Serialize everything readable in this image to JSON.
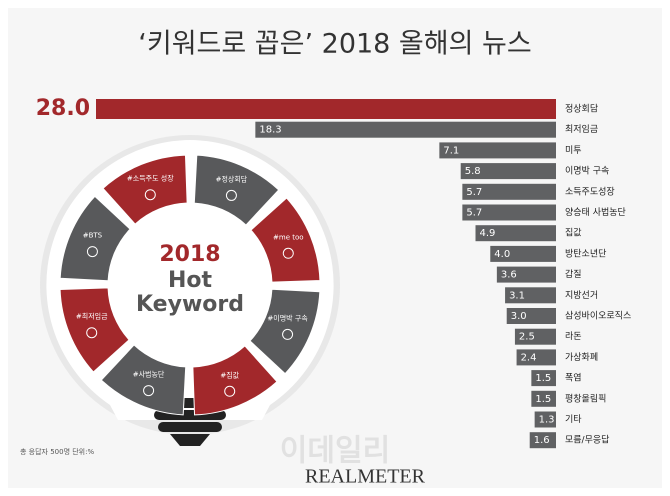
{
  "chart_data": {
    "type": "hbar",
    "title": "‘키워드로 꼽은’ 2018 올해의 뉴스",
    "categories": [
      "정상회담",
      "최저임금",
      "미투",
      "이명박 구속",
      "소득주도성장",
      "양승태 사법농단",
      "집값",
      "방탄소년단",
      "갑질",
      "지방선거",
      "삼성바이오로직스",
      "라돈",
      "가상화폐",
      "폭염",
      "평창올림픽",
      "기타",
      "모름/무응답"
    ],
    "values": [
      28.0,
      18.3,
      7.1,
      5.8,
      5.7,
      5.7,
      4.9,
      4.0,
      3.6,
      3.1,
      3.0,
      2.5,
      2.4,
      1.5,
      1.5,
      1.3,
      1.6
    ],
    "value_labels": [
      "28.0",
      "18.3",
      "7.1",
      "5.8",
      "5.7",
      "5.7",
      "4.9",
      "4.0",
      "3.6",
      "3.1",
      "3.0",
      "2.5",
      "2.4",
      "1.5",
      "1.5",
      "1.3",
      "1.6"
    ],
    "color": "#606163",
    "highlight_color": "#a2282b",
    "note": "총 응답자 500명  단위:%",
    "bulb": {
      "title": "2018",
      "subtitle": [
        "Hot",
        "Keyword"
      ],
      "segments": [
        "#소득주도 성장",
        "#정상회담",
        "#me too",
        "#이명박 구속",
        "#집값",
        "#사법농단",
        "#최저임금",
        "#BTS"
      ]
    },
    "watermark": "이데일리",
    "source": "REALMETER"
  }
}
